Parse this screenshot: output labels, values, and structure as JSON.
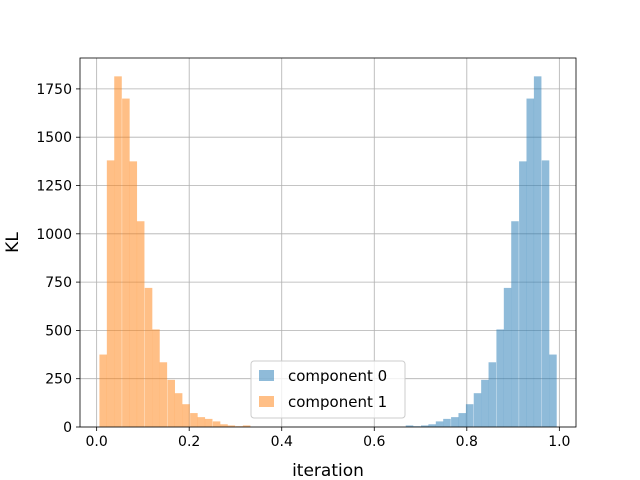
{
  "chart_data": {
    "type": "bar",
    "xlabel": "iteration",
    "ylabel": "KL",
    "xlim": [
      -0.036,
      1.036
    ],
    "ylim": [
      0,
      1910
    ],
    "grid": true,
    "legend_position": "lower-center",
    "x_ticks": [
      {
        "value": 0.0,
        "label": "0.0"
      },
      {
        "value": 0.2,
        "label": "0.2"
      },
      {
        "value": 0.4,
        "label": "0.4"
      },
      {
        "value": 0.6,
        "label": "0.6"
      },
      {
        "value": 0.8,
        "label": "0.8"
      },
      {
        "value": 1.0,
        "label": "1.0"
      }
    ],
    "y_ticks": [
      {
        "value": 0,
        "label": "0"
      },
      {
        "value": 250,
        "label": "250"
      },
      {
        "value": 500,
        "label": "500"
      },
      {
        "value": 750,
        "label": "750"
      },
      {
        "value": 1000,
        "label": "1000"
      },
      {
        "value": 1250,
        "label": "1250"
      },
      {
        "value": 1500,
        "label": "1500"
      },
      {
        "value": 1750,
        "label": "1750"
      }
    ],
    "bin_width": 0.0163,
    "series": [
      {
        "name": "component 0",
        "color": "#1f77b4",
        "opacity": 0.5,
        "bin_starts": [
          0.668,
          0.684,
          0.701,
          0.717,
          0.733,
          0.749,
          0.766,
          0.782,
          0.798,
          0.815,
          0.831,
          0.847,
          0.864,
          0.88,
          0.896,
          0.913,
          0.929,
          0.945,
          0.962,
          0.978
        ],
        "counts": [
          8,
          4,
          8,
          14,
          29,
          42,
          51,
          72,
          118,
          175,
          244,
          335,
          505,
          720,
          1065,
          1375,
          1700,
          1815,
          1380,
          375
        ]
      },
      {
        "name": "component 1",
        "color": "#ff7f0e",
        "opacity": 0.5,
        "bin_starts": [
          0.006,
          0.022,
          0.038,
          0.055,
          0.071,
          0.087,
          0.104,
          0.12,
          0.136,
          0.153,
          0.169,
          0.185,
          0.202,
          0.218,
          0.234,
          0.251,
          0.267,
          0.283,
          0.3,
          0.316
        ],
        "counts": [
          375,
          1380,
          1815,
          1700,
          1375,
          1065,
          720,
          505,
          335,
          244,
          175,
          118,
          72,
          51,
          42,
          29,
          14,
          8,
          4,
          8
        ]
      }
    ]
  }
}
